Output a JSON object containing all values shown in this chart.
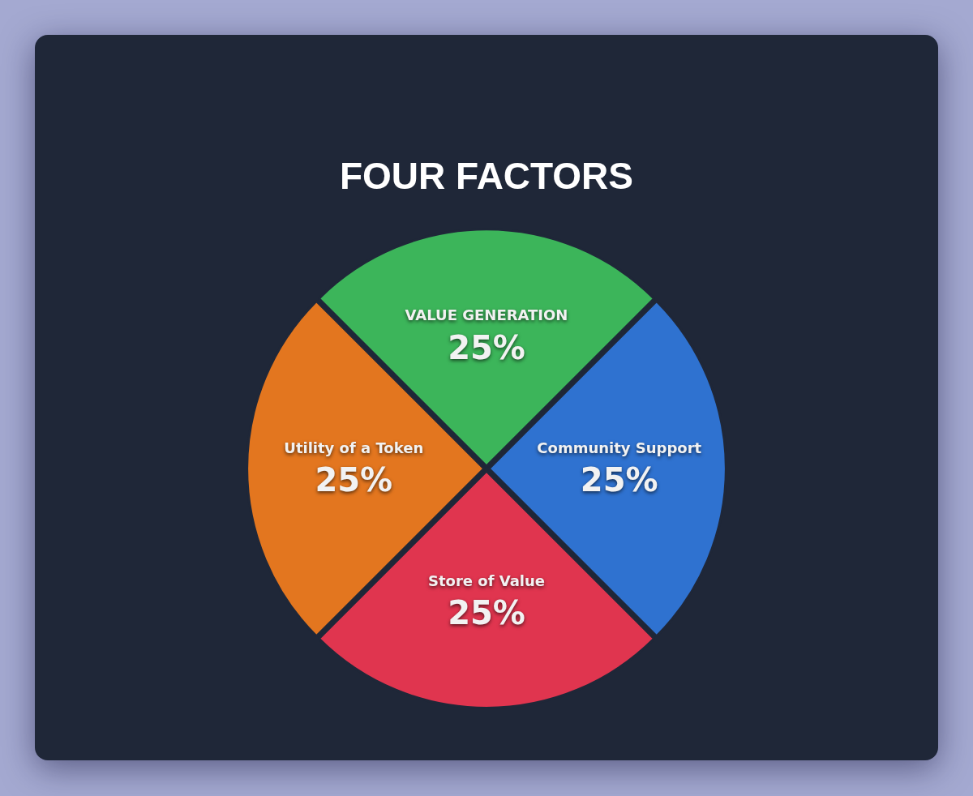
{
  "chart_data": {
    "type": "pie",
    "title": "FOUR FACTORS",
    "categories": [
      "VALUE GENERATION",
      "Community Support",
      "Store of Value",
      "Utility of a Token"
    ],
    "values": [
      25,
      25,
      25,
      25
    ],
    "colors": [
      "#3cb55a",
      "#2f72d0",
      "#e0354f",
      "#e3761f"
    ],
    "value_labels": [
      "25%",
      "25%",
      "25%",
      "25%"
    ]
  }
}
